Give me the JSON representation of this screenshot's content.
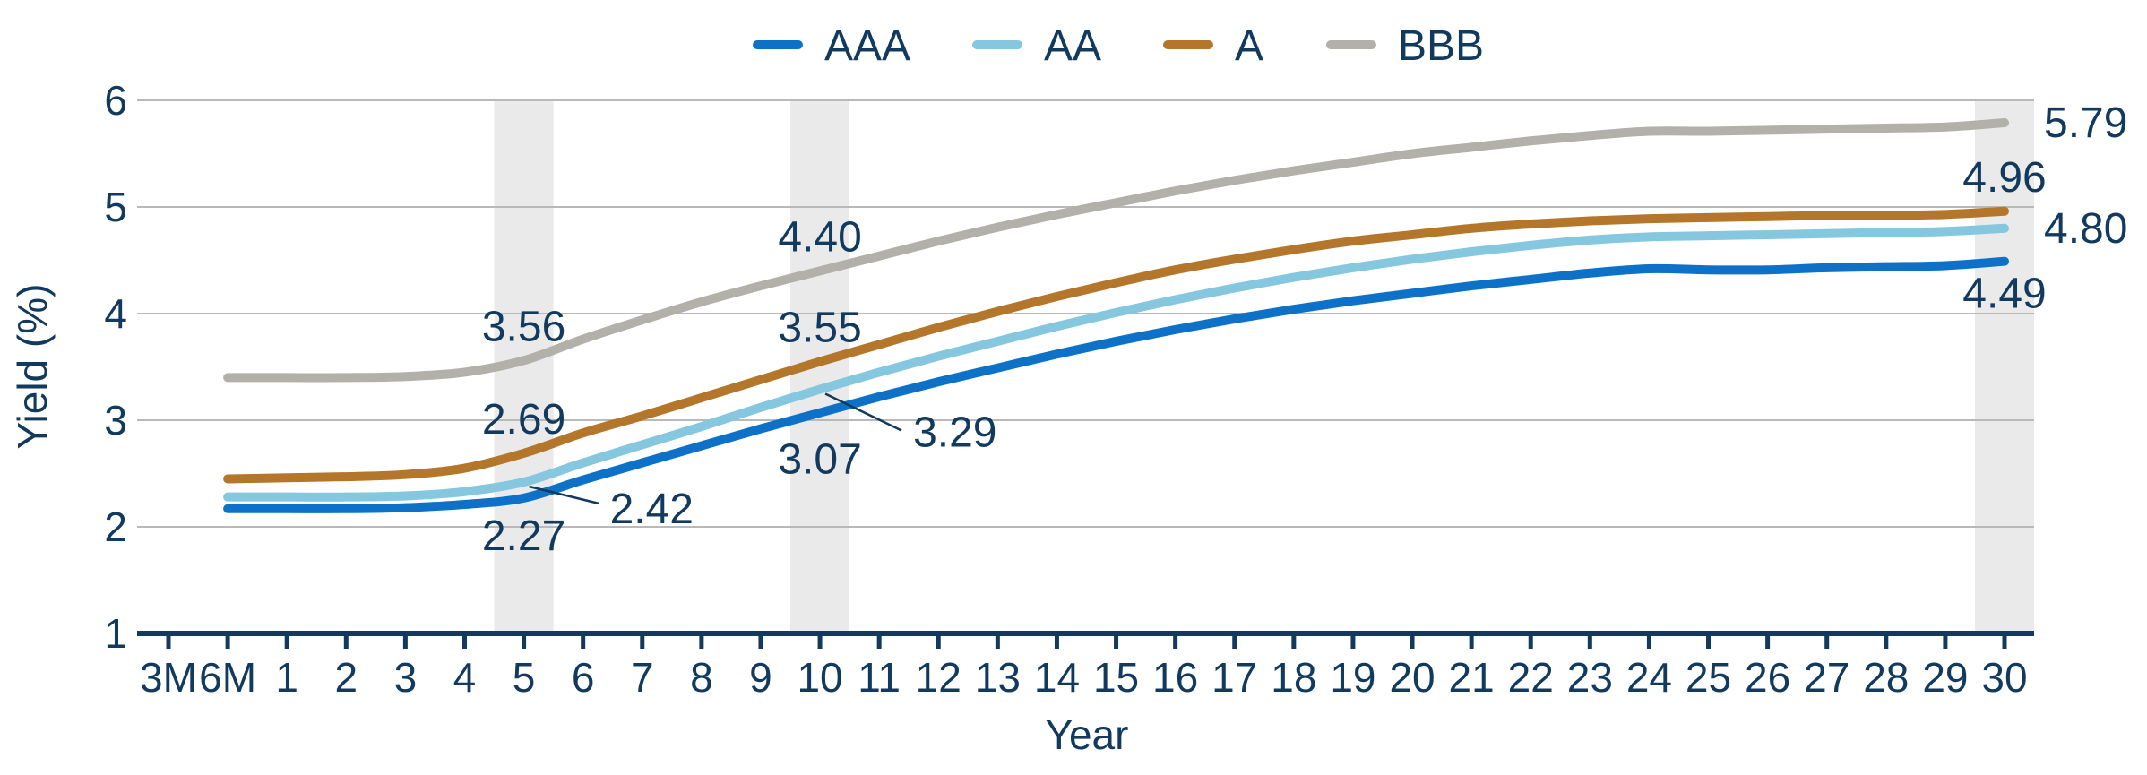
{
  "styles": {
    "text_color": "#123a5e",
    "grid_color": "#b9b9b9",
    "band_color": "#eaeaea",
    "axis_color": "#123a5e",
    "background": "#ffffff"
  },
  "chart_data": {
    "type": "line",
    "xlabel": "Year",
    "ylabel": "Yield (%)",
    "ylim": [
      1,
      6
    ],
    "yticks": [
      1,
      2,
      3,
      4,
      5,
      6
    ],
    "grid": "horizontal",
    "legend_position": "top-center",
    "categories": [
      "3M",
      "6M",
      "1",
      "2",
      "3",
      "4",
      "5",
      "6",
      "7",
      "8",
      "9",
      "10",
      "11",
      "12",
      "13",
      "14",
      "15",
      "16",
      "17",
      "18",
      "19",
      "20",
      "21",
      "22",
      "23",
      "24",
      "25",
      "26",
      "27",
      "28",
      "29",
      "30"
    ],
    "series_start_index": 1,
    "series": [
      {
        "name": "AAA",
        "color": "#0d72c7",
        "values": [
          2.17,
          2.17,
          2.17,
          2.18,
          2.21,
          2.27,
          2.44,
          2.6,
          2.76,
          2.92,
          3.07,
          3.22,
          3.36,
          3.49,
          3.62,
          3.74,
          3.85,
          3.95,
          4.04,
          4.12,
          4.19,
          4.26,
          4.32,
          4.38,
          4.42,
          4.41,
          4.41,
          4.43,
          4.44,
          4.45,
          4.49
        ]
      },
      {
        "name": "AA",
        "color": "#85c7de",
        "values": [
          2.28,
          2.28,
          2.28,
          2.29,
          2.33,
          2.42,
          2.6,
          2.77,
          2.94,
          3.12,
          3.29,
          3.45,
          3.6,
          3.74,
          3.88,
          4.01,
          4.13,
          4.24,
          4.34,
          4.43,
          4.51,
          4.58,
          4.64,
          4.69,
          4.72,
          4.73,
          4.74,
          4.75,
          4.76,
          4.77,
          4.8
        ]
      },
      {
        "name": "A",
        "color": "#b4762a",
        "values": [
          2.45,
          2.46,
          2.47,
          2.49,
          2.55,
          2.69,
          2.88,
          3.04,
          3.21,
          3.38,
          3.55,
          3.71,
          3.87,
          4.02,
          4.16,
          4.29,
          4.41,
          4.51,
          4.6,
          4.68,
          4.74,
          4.8,
          4.84,
          4.87,
          4.89,
          4.9,
          4.91,
          4.92,
          4.92,
          4.93,
          4.96
        ]
      },
      {
        "name": "BBB",
        "color": "#b1b1a9",
        "values": [
          3.4,
          3.4,
          3.4,
          3.41,
          3.45,
          3.56,
          3.76,
          3.94,
          4.11,
          4.26,
          4.4,
          4.54,
          4.68,
          4.81,
          4.93,
          5.04,
          5.15,
          5.25,
          5.34,
          5.42,
          5.5,
          5.56,
          5.62,
          5.67,
          5.71,
          5.71,
          5.72,
          5.73,
          5.74,
          5.75,
          5.79
        ]
      }
    ],
    "highlight_bands": [
      "5",
      "10",
      "30"
    ],
    "annotations": [
      {
        "label": "3.56",
        "series": "BBB",
        "cat": "5",
        "value": 3.56,
        "placement": "above"
      },
      {
        "label": "2.69",
        "series": "A",
        "cat": "5",
        "value": 2.69,
        "placement": "above"
      },
      {
        "label": "2.42",
        "series": "AA",
        "cat": "5",
        "value": 2.42,
        "placement": "leader",
        "leader_end": [
          84,
          24
        ],
        "text_offset": [
          96,
          46
        ]
      },
      {
        "label": "2.27",
        "series": "AAA",
        "cat": "5",
        "value": 2.27,
        "placement": "below"
      },
      {
        "label": "4.40",
        "series": "BBB",
        "cat": "10",
        "value": 4.4,
        "placement": "above"
      },
      {
        "label": "3.55",
        "series": "A",
        "cat": "10",
        "value": 3.55,
        "placement": "above"
      },
      {
        "label": "3.29",
        "series": "AA",
        "cat": "10",
        "value": 3.29,
        "placement": "leader",
        "leader_end": [
          91,
          46
        ],
        "text_offset": [
          104,
          64
        ]
      },
      {
        "label": "3.07",
        "series": "AAA",
        "cat": "10",
        "value": 3.07,
        "placement": "below",
        "text_offset": [
          0,
          68
        ]
      },
      {
        "label": "5.79",
        "series": "BBB",
        "cat": "30",
        "value": 5.79,
        "placement": "right"
      },
      {
        "label": "4.96",
        "series": "A",
        "cat": "30",
        "value": 4.96,
        "placement": "above"
      },
      {
        "label": "4.80",
        "series": "AA",
        "cat": "30",
        "value": 4.8,
        "placement": "right"
      },
      {
        "label": "4.49",
        "series": "AAA",
        "cat": "30",
        "value": 4.49,
        "placement": "below",
        "text_offset": [
          0,
          52
        ]
      }
    ]
  }
}
